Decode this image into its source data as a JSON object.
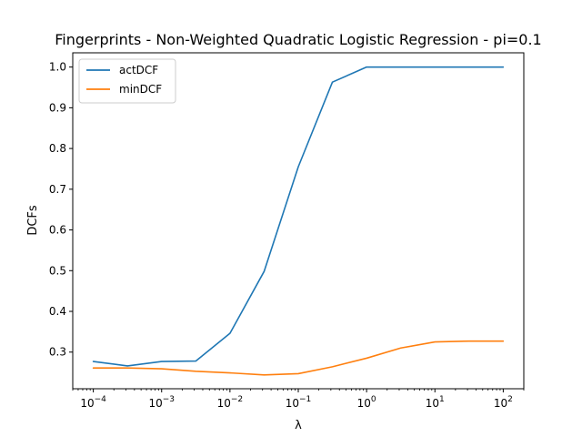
{
  "chart_data": {
    "type": "line",
    "title": "Fingerprints - Non-Weighted Quadratic Logistic Regression - pi=0.1",
    "xlabel": "λ",
    "ylabel": "DCFs",
    "xscale": "log",
    "xlim": [
      5e-05,
      200
    ],
    "ylim": [
      0.21,
      1.035
    ],
    "x": [
      0.0001,
      0.000316,
      0.001,
      0.00316,
      0.01,
      0.0316,
      0.1,
      0.316,
      1,
      3.16,
      10,
      31.6,
      100
    ],
    "x_ticks": [
      {
        "value": 0.0001,
        "base": "10",
        "exp": "−4"
      },
      {
        "value": 0.001,
        "base": "10",
        "exp": "−3"
      },
      {
        "value": 0.01,
        "base": "10",
        "exp": "−2"
      },
      {
        "value": 0.1,
        "base": "10",
        "exp": "−1"
      },
      {
        "value": 1,
        "base": "10",
        "exp": "0"
      },
      {
        "value": 10,
        "base": "10",
        "exp": "1"
      },
      {
        "value": 100,
        "base": "10",
        "exp": "2"
      }
    ],
    "y_ticks": [
      "0.3",
      "0.4",
      "0.5",
      "0.6",
      "0.7",
      "0.8",
      "0.9",
      "1.0"
    ],
    "series": [
      {
        "name": "actDCF",
        "color": "#1f77b4",
        "values": [
          0.277,
          0.266,
          0.277,
          0.278,
          0.346,
          0.498,
          0.755,
          0.963,
          1.0,
          1.0,
          1.0,
          1.0,
          1.0
        ]
      },
      {
        "name": "minDCF",
        "color": "#ff7f0e",
        "values": [
          0.261,
          0.261,
          0.259,
          0.253,
          0.249,
          0.244,
          0.247,
          0.264,
          0.285,
          0.31,
          0.325,
          0.327,
          0.327
        ]
      }
    ],
    "legend": "top-left",
    "grid": false
  }
}
